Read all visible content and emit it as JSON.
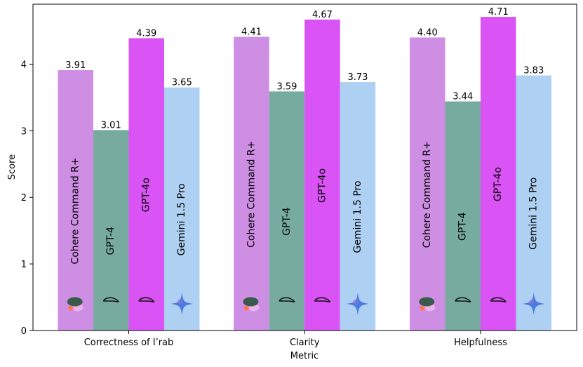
{
  "chart_data": {
    "type": "bar",
    "title": "",
    "xlabel": "Metric",
    "ylabel": "Score",
    "ylim": [
      0,
      4.9
    ],
    "yticks": [
      0,
      1,
      2,
      3,
      4
    ],
    "grid": false,
    "legend": "none",
    "categories": [
      "Correctness of I’rab",
      "Clarity",
      "Helpfulness"
    ],
    "series": [
      {
        "name": "Cohere Command R+",
        "color": "#ce8ee4",
        "icon": "cohere-logo-icon",
        "values": [
          3.91,
          4.41,
          4.4
        ],
        "labels": [
          "3.91",
          "4.41",
          "4.40"
        ]
      },
      {
        "name": "GPT-4",
        "color": "#78ab9f",
        "icon": "openai-logo-icon",
        "values": [
          3.01,
          3.59,
          3.44
        ],
        "labels": [
          "3.01",
          "3.59",
          "3.44"
        ]
      },
      {
        "name": "GPT-4o",
        "color": "#da53f5",
        "icon": "openai-logo-icon",
        "values": [
          4.39,
          4.67,
          4.71
        ],
        "labels": [
          "4.39",
          "4.67",
          "4.71"
        ]
      },
      {
        "name": "Gemini 1.5 Pro",
        "color": "#aed0f2",
        "icon": "gemini-sparkle-icon",
        "values": [
          3.65,
          3.73,
          3.83
        ],
        "labels": [
          "3.65",
          "3.73",
          "3.83"
        ]
      }
    ]
  }
}
